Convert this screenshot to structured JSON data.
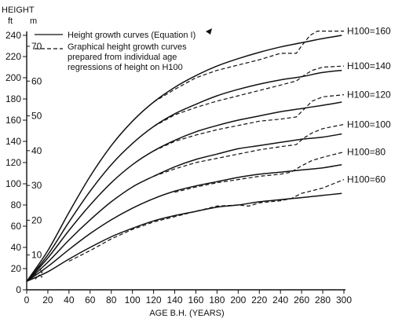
{
  "chart_data": {
    "type": "line",
    "title": "",
    "xlabel": "AGE B.H. (YEARS)",
    "ylabel_ft": "ft",
    "ylabel_m": "m",
    "y_header": "HEIGHT",
    "xlim": [
      0,
      300
    ],
    "ylim": [
      0,
      240
    ],
    "x_ticks": [
      "0",
      "20",
      "40",
      "60",
      "80",
      "100",
      "120",
      "140",
      "160",
      "180",
      "200",
      "220",
      "240",
      "260",
      "280",
      "300"
    ],
    "y_ticks_ft": [
      "0",
      "20",
      "40",
      "60",
      "80",
      "100",
      "120",
      "140",
      "160",
      "180",
      "200",
      "220",
      "240"
    ],
    "y_ticks_m": [
      "10",
      "20",
      "30",
      "40",
      "50",
      "60",
      "70"
    ],
    "legend": {
      "placement": "top",
      "solid_label": "Height growth curves (Equation I)",
      "dashed_label_lines": [
        "Graphical height growth curves",
        "prepared from individual age",
        "regressions of height on H100"
      ]
    },
    "series": [
      {
        "name": "H100=160",
        "label": "H100=160",
        "solid": {
          "x": [
            0,
            20,
            40,
            60,
            80,
            100,
            120,
            140,
            160,
            180,
            200,
            220,
            240,
            260,
            280,
            298
          ],
          "y": [
            8,
            37,
            73,
            107,
            136,
            159,
            177,
            191,
            202,
            211,
            218,
            224,
            229,
            233,
            237,
            240
          ]
        },
        "dashed": {
          "x": [
            120,
            140,
            160,
            180,
            200,
            220,
            240,
            255,
            260,
            268,
            275,
            300
          ],
          "y": [
            177,
            189,
            200,
            207,
            212,
            217,
            223,
            223,
            230,
            240,
            244,
            244
          ]
        }
      },
      {
        "name": "H100=140",
        "label": "H100=140",
        "solid": {
          "x": [
            0,
            20,
            40,
            60,
            80,
            100,
            120,
            140,
            160,
            180,
            200,
            220,
            240,
            260,
            280,
            298
          ],
          "y": [
            8,
            33,
            64,
            93,
            118,
            138,
            154,
            166,
            175,
            183,
            189,
            194,
            198,
            201,
            205,
            207
          ]
        },
        "dashed": {
          "x": [
            120,
            140,
            160,
            180,
            200,
            220,
            240,
            255,
            262,
            270,
            280,
            300
          ],
          "y": [
            154,
            165,
            172,
            178,
            183,
            188,
            193,
            197,
            202,
            207,
            210,
            211
          ]
        }
      },
      {
        "name": "H100=120",
        "label": "H100=120",
        "solid": {
          "x": [
            0,
            20,
            40,
            60,
            80,
            100,
            120,
            140,
            160,
            180,
            200,
            220,
            240,
            260,
            280,
            298
          ],
          "y": [
            8,
            30,
            56,
            80,
            101,
            118,
            131,
            141,
            149,
            155,
            160,
            164,
            168,
            171,
            174,
            177
          ]
        },
        "dashed": {
          "x": [
            120,
            140,
            160,
            180,
            200,
            220,
            240,
            255,
            262,
            270,
            280,
            300
          ],
          "y": [
            131,
            140,
            146,
            151,
            155,
            159,
            161,
            163,
            170,
            178,
            182,
            184
          ]
        }
      },
      {
        "name": "H100=100",
        "label": "H100=100",
        "solid": {
          "x": [
            0,
            20,
            40,
            60,
            80,
            100,
            120,
            140,
            160,
            180,
            200,
            220,
            240,
            260,
            280,
            298
          ],
          "y": [
            8,
            26,
            47,
            66,
            83,
            97,
            107,
            116,
            123,
            128,
            133,
            136,
            139,
            142,
            144,
            147
          ]
        },
        "dashed": {
          "x": [
            120,
            140,
            160,
            180,
            200,
            220,
            240,
            255,
            262,
            270,
            280,
            300
          ],
          "y": [
            107,
            114,
            120,
            124,
            128,
            132,
            135,
            137,
            143,
            148,
            152,
            156
          ]
        }
      },
      {
        "name": "H100=80",
        "label": "H100=80",
        "solid": {
          "x": [
            0,
            20,
            40,
            60,
            80,
            100,
            120,
            140,
            160,
            180,
            200,
            220,
            240,
            260,
            280,
            298
          ],
          "y": [
            8,
            22,
            38,
            53,
            66,
            77,
            86,
            93,
            98,
            102,
            106,
            109,
            111,
            113,
            115,
            118
          ]
        },
        "dashed": {
          "x": [
            140,
            160,
            180,
            200,
            220,
            240,
            250,
            260,
            270,
            280,
            300
          ],
          "y": [
            92,
            97,
            101,
            104,
            107,
            109,
            111,
            117,
            122,
            125,
            130
          ]
        }
      },
      {
        "name": "H100=60",
        "label": "H100=60",
        "solid": {
          "x": [
            0,
            20,
            40,
            60,
            80,
            100,
            120,
            140,
            160,
            180,
            200,
            220,
            240,
            260,
            280,
            298
          ],
          "y": [
            8,
            17,
            29,
            40,
            50,
            58,
            65,
            70,
            74,
            78,
            80,
            83,
            85,
            87,
            89,
            91
          ]
        },
        "dashed": {
          "x": [
            40,
            60,
            80,
            100,
            120,
            140,
            160,
            180,
            200,
            210,
            220,
            240,
            250,
            260,
            280,
            300
          ],
          "y": [
            27,
            37,
            48,
            57,
            64,
            69,
            74,
            79,
            80,
            79,
            82,
            84,
            86,
            91,
            96,
            104
          ]
        }
      }
    ],
    "early_dashed": {
      "x": [
        8,
        10,
        12,
        14,
        16
      ],
      "y_low": [
        10,
        12,
        14,
        12,
        13
      ],
      "y_high": [
        14,
        20,
        22,
        16,
        18
      ]
    }
  }
}
